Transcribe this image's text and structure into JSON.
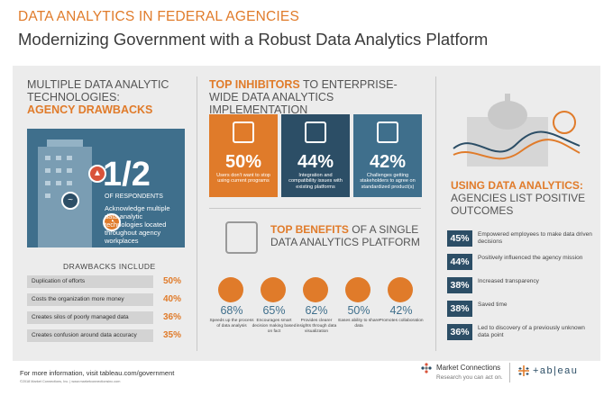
{
  "header": {
    "kicker": "DATA ANALYTICS IN FEDERAL AGENCIES",
    "title": "Modernizing Government with a Robust Data Analytics Platform"
  },
  "left": {
    "heading_lines": [
      "MULTIPLE DATA ANALYTIC",
      "TECHNOLOGIES:"
    ],
    "heading_accent": "AGENCY DRAWBACKS",
    "fraction": "1/2",
    "respondents": "OF RESPONDENTS",
    "acknowledge": "Acknowledge multiple data analytic technologies located throughout agency workplaces",
    "drawbacks_title": "DRAWBACKS INCLUDE",
    "drawbacks": [
      {
        "label": "Duplication of efforts",
        "pct": "50%",
        "value": 50
      },
      {
        "label": "Costs the organization more money",
        "pct": "40%",
        "value": 40
      },
      {
        "label": "Creates silos of poorly managed data",
        "pct": "36%",
        "value": 36
      },
      {
        "label": "Creates confusion around data accuracy",
        "pct": "35%",
        "value": 35
      }
    ]
  },
  "inhibitors": {
    "heading_accent": "TOP INHIBITORS",
    "heading_rest": " TO ENTERPRISE-WIDE DATA ANALYTICS IMPLEMENTATION",
    "items": [
      {
        "pct": "50%",
        "desc": "Users don't want to stop using current programs",
        "color": "#e07b2a"
      },
      {
        "pct": "44%",
        "desc": "Integration and compatibility issues with existing platforms",
        "color": "#2c4e66"
      },
      {
        "pct": "42%",
        "desc": "Challenges getting stakeholders to agree on standardized product(s)",
        "color": "#3f6f8c"
      }
    ]
  },
  "benefits": {
    "heading_accent": "TOP BENEFITS",
    "heading_rest": " OF A SINGLE DATA ANALYTICS PLATFORM",
    "items": [
      {
        "pct": "68%",
        "desc": "Speeds up the process of data analysis"
      },
      {
        "pct": "65%",
        "desc": "Encourages smart decision making based on fact"
      },
      {
        "pct": "62%",
        "desc": "Provides clearer insights through data visualization"
      },
      {
        "pct": "50%",
        "desc": "Eases ability to share data"
      },
      {
        "pct": "42%",
        "desc": "Promotes collaboration"
      }
    ]
  },
  "outcomes": {
    "heading_accent": "USING DATA ANALYTICS:",
    "heading_rest": "AGENCIES LIST POSITIVE OUTCOMES",
    "items": [
      {
        "pct": "45%",
        "desc": "Empowered employees to make data driven decisions"
      },
      {
        "pct": "44%",
        "desc": "Positively influenced the agency mission"
      },
      {
        "pct": "38%",
        "desc": "Increased transparency"
      },
      {
        "pct": "38%",
        "desc": "Saved time"
      },
      {
        "pct": "36%",
        "desc": "Led to discovery of a previously unknown data point"
      }
    ]
  },
  "footer": {
    "info": "For more information, visit tableau.com/government",
    "copyright": "©2018 Market Connections, Inc.   |   www.marketconnectionsinc.com",
    "mc_name": "Market Connections",
    "mc_tag": "Research you can act on.",
    "tableau": "+ab|eau"
  },
  "colors": {
    "accent": "#e07b2a",
    "navy": "#2c4e66",
    "steel": "#3f6f8c",
    "panel": "#ececec"
  }
}
